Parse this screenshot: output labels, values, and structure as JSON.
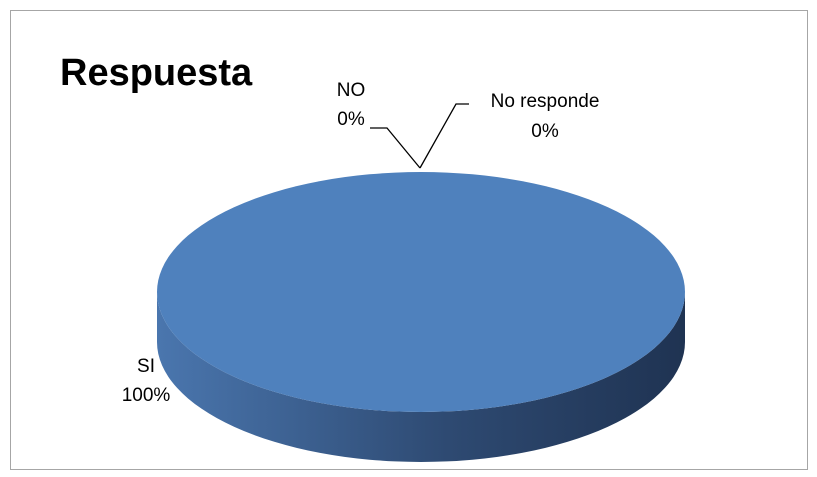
{
  "chart_data": {
    "type": "pie",
    "title": "Respuesta",
    "style": "3d",
    "slices": [
      {
        "name": "SI",
        "value": 100,
        "label": "100%",
        "color": "#4f81bd"
      },
      {
        "name": "NO",
        "value": 0,
        "label": "0%"
      },
      {
        "name": "No responde",
        "value": 0,
        "label": "0%"
      }
    ]
  },
  "colors": {
    "slice_top": "#4f81bd",
    "slice_side_light": "#4a76ae",
    "slice_side_dark": "#1f3352",
    "leader_line": "#000000",
    "frame_border": "#a6a6a6"
  }
}
